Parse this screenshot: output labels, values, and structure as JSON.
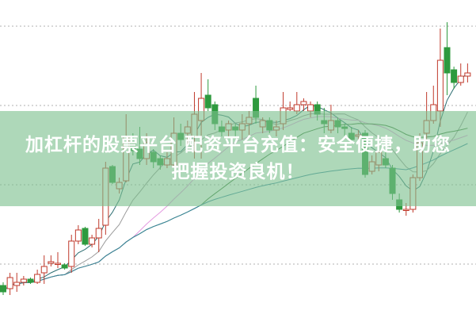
{
  "banner": {
    "line1": "加杠杆的股票平台 配资平台充值：安全便捷，助您",
    "line2": "把握投资良机！"
  },
  "chart_data": {
    "type": "candlestick",
    "title": "",
    "grid": "horizontal dotted",
    "ylim": [
      0,
      100
    ],
    "colors": {
      "up": "#c0392b",
      "down": "#2e9a3e",
      "grid": "#b0b0b0"
    },
    "moving_averages": [
      {
        "period": 5,
        "color": "#2f6f73"
      },
      {
        "period": 10,
        "color": "#9a9a9a"
      },
      {
        "period": 20,
        "color": "#e49ae0"
      },
      {
        "period": 30,
        "color": "#3d7d3d"
      },
      {
        "period": 60,
        "color": "#3a86a0"
      }
    ],
    "candles": [
      [
        10,
        8,
        11,
        7
      ],
      [
        9,
        12.5,
        14,
        7
      ],
      [
        10,
        11,
        14,
        8
      ],
      [
        11,
        12,
        13,
        10
      ],
      [
        12,
        11,
        12.5,
        10.5
      ],
      [
        11,
        13.5,
        15,
        10.5
      ],
      [
        14,
        16,
        19.5,
        10.5
      ],
      [
        17,
        17.5,
        19.5,
        16
      ],
      [
        17,
        17,
        20.5,
        15.5
      ],
      [
        16.5,
        15.5,
        17,
        15
      ],
      [
        16,
        24,
        26,
        14
      ],
      [
        24,
        27.5,
        29,
        23
      ],
      [
        28,
        23,
        28.5,
        22.5
      ],
      [
        23,
        25,
        26,
        22
      ],
      [
        25,
        28,
        31,
        20.5
      ],
      [
        29,
        47,
        49,
        26
      ],
      [
        47.5,
        42.5,
        48,
        42
      ],
      [
        40.5,
        42.5,
        44,
        39
      ],
      [
        43,
        57,
        64,
        42.5
      ],
      [
        55,
        52.5,
        58,
        51
      ],
      [
        53,
        50,
        60,
        48
      ],
      [
        50,
        55,
        58,
        48
      ],
      [
        52,
        49,
        53,
        47
      ],
      [
        50,
        48,
        51,
        46.5
      ],
      [
        48,
        50,
        52,
        47
      ],
      [
        48,
        58,
        63,
        47.5
      ],
      [
        58,
        56,
        61,
        54
      ],
      [
        58,
        60,
        62,
        54
      ],
      [
        57,
        64,
        71,
        50
      ],
      [
        62,
        69,
        77,
        50
      ],
      [
        70,
        66,
        75,
        65
      ],
      [
        67,
        61,
        68,
        59
      ],
      [
        60,
        58.5,
        62,
        57
      ],
      [
        59,
        61,
        62,
        57
      ],
      [
        60,
        59,
        61,
        57
      ],
      [
        59,
        61,
        64,
        56
      ],
      [
        61,
        63,
        65,
        57
      ],
      [
        69,
        63,
        73,
        61
      ],
      [
        60,
        62,
        63,
        58
      ],
      [
        62,
        59,
        63,
        58
      ],
      [
        59,
        60,
        62,
        57
      ],
      [
        61,
        66,
        71,
        59
      ],
      [
        65.5,
        66,
        68,
        65
      ],
      [
        65,
        67,
        71,
        64
      ],
      [
        67,
        68,
        69,
        65
      ],
      [
        65,
        67,
        68,
        63
      ],
      [
        67,
        64,
        68,
        62
      ],
      [
        62,
        61,
        66,
        58
      ],
      [
        59,
        62,
        67,
        58
      ],
      [
        62,
        60,
        63,
        58
      ],
      [
        60,
        59.5,
        61,
        57
      ],
      [
        58,
        56,
        60,
        55
      ],
      [
        57,
        57.5,
        59,
        56
      ],
      [
        58,
        45,
        59,
        44
      ],
      [
        46,
        49,
        51,
        45
      ],
      [
        48,
        52,
        55,
        46
      ],
      [
        50,
        48,
        52,
        47
      ],
      [
        47,
        39,
        48,
        37
      ],
      [
        37,
        34,
        39,
        33
      ],
      [
        34,
        34,
        36,
        32
      ],
      [
        34,
        44,
        45,
        33
      ],
      [
        44,
        55,
        58,
        43
      ],
      [
        58,
        62,
        71,
        56
      ],
      [
        62,
        67,
        73,
        61
      ],
      [
        65,
        81,
        91,
        60
      ],
      [
        85,
        77,
        93,
        70
      ],
      [
        78,
        74,
        79,
        72
      ],
      [
        74,
        76,
        80,
        73
      ],
      [
        76,
        77,
        80,
        74
      ]
    ]
  }
}
